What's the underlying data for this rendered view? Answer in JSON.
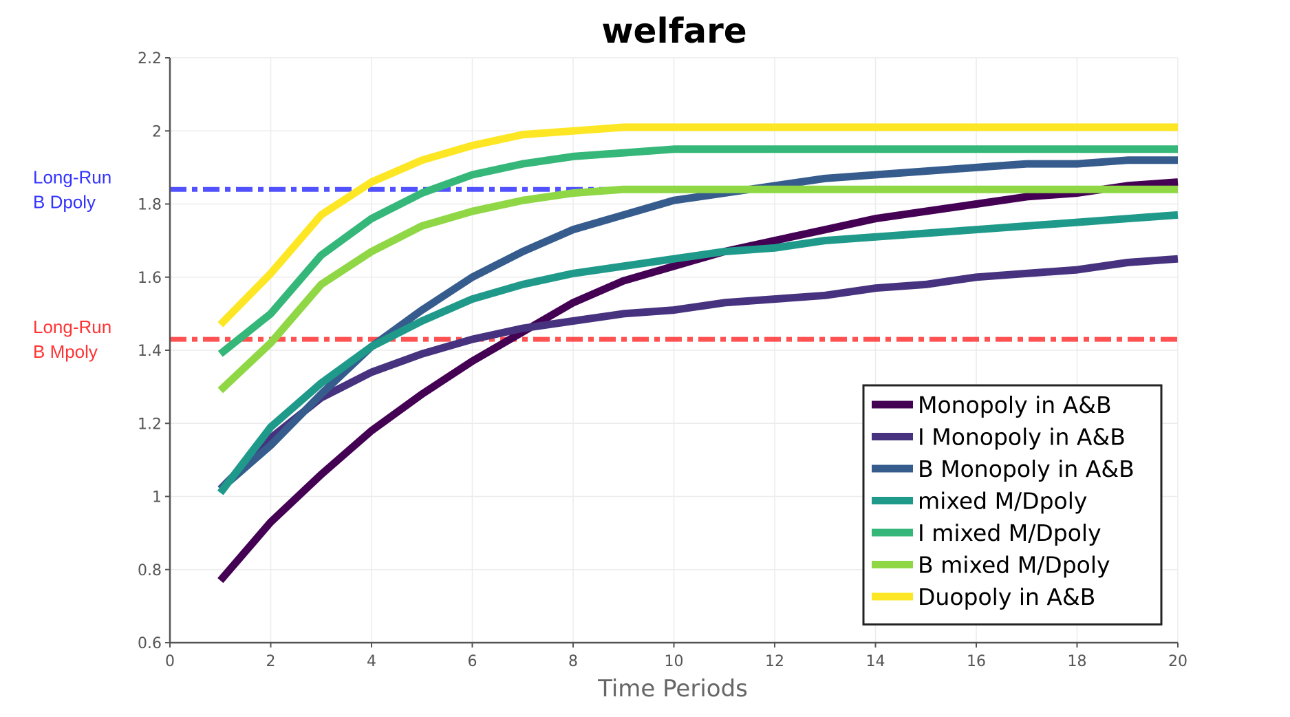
{
  "chart_data": {
    "type": "line",
    "title": "welfare",
    "xlabel": "Time Periods",
    "ylabel": "",
    "xlim": [
      0,
      20
    ],
    "ylim": [
      0.6,
      2.2
    ],
    "xticks": [
      "0",
      "2",
      "4",
      "6",
      "8",
      "10",
      "12",
      "14",
      "16",
      "18",
      "20"
    ],
    "yticks": [
      "0.6",
      "0.8",
      "1",
      "1.2",
      "1.4",
      "1.6",
      "1.8",
      "2",
      "2.2"
    ],
    "grid": true,
    "legend_position": "bottom-right",
    "x": [
      1,
      2,
      3,
      4,
      5,
      6,
      7,
      8,
      9,
      10,
      11,
      12,
      13,
      14,
      15,
      16,
      17,
      18,
      19,
      20
    ],
    "series": [
      {
        "name": "Monopoly in A&B",
        "color": "#440154",
        "values": [
          0.77,
          0.93,
          1.06,
          1.18,
          1.28,
          1.37,
          1.45,
          1.53,
          1.59,
          1.63,
          1.67,
          1.7,
          1.73,
          1.76,
          1.78,
          1.8,
          1.82,
          1.83,
          1.85,
          1.86
        ]
      },
      {
        "name": "I Monopoly in A&B",
        "color": "#46327e",
        "values": [
          1.02,
          1.16,
          1.27,
          1.34,
          1.39,
          1.43,
          1.46,
          1.48,
          1.5,
          1.51,
          1.53,
          1.54,
          1.55,
          1.57,
          1.58,
          1.6,
          1.61,
          1.62,
          1.64,
          1.65
        ]
      },
      {
        "name": "B Monopoly in A&B",
        "color": "#365c8d",
        "values": [
          1.02,
          1.14,
          1.28,
          1.41,
          1.51,
          1.6,
          1.67,
          1.73,
          1.77,
          1.81,
          1.83,
          1.85,
          1.87,
          1.88,
          1.89,
          1.9,
          1.91,
          1.91,
          1.92,
          1.92
        ]
      },
      {
        "name": "mixed M/Dpoly",
        "color": "#1f9a8a",
        "values": [
          1.01,
          1.19,
          1.31,
          1.41,
          1.48,
          1.54,
          1.58,
          1.61,
          1.63,
          1.65,
          1.67,
          1.68,
          1.7,
          1.71,
          1.72,
          1.73,
          1.74,
          1.75,
          1.76,
          1.77
        ]
      },
      {
        "name": "I mixed M/Dpoly",
        "color": "#35b779",
        "values": [
          1.39,
          1.5,
          1.66,
          1.76,
          1.83,
          1.88,
          1.91,
          1.93,
          1.94,
          1.95,
          1.95,
          1.95,
          1.95,
          1.95,
          1.95,
          1.95,
          1.95,
          1.95,
          1.95,
          1.95
        ]
      },
      {
        "name": "B mixed M/Dpoly",
        "color": "#8fd744",
        "values": [
          1.29,
          1.42,
          1.58,
          1.67,
          1.74,
          1.78,
          1.81,
          1.83,
          1.84,
          1.84,
          1.84,
          1.84,
          1.84,
          1.84,
          1.84,
          1.84,
          1.84,
          1.84,
          1.84,
          1.84
        ]
      },
      {
        "name": "Duopoly in A&B",
        "color": "#fde725",
        "values": [
          1.47,
          1.61,
          1.77,
          1.86,
          1.92,
          1.96,
          1.99,
          2.0,
          2.01,
          2.01,
          2.01,
          2.01,
          2.01,
          2.01,
          2.01,
          2.01,
          2.01,
          2.01,
          2.01,
          2.01
        ]
      }
    ],
    "reference_lines": [
      {
        "label_line1": "Long-Run",
        "label_line2": "B Dpoly",
        "value": 1.84,
        "color": "#3333ff"
      },
      {
        "label_line1": "Long-Run",
        "label_line2": "B Mpoly",
        "value": 1.43,
        "color": "#ff3333"
      }
    ]
  }
}
